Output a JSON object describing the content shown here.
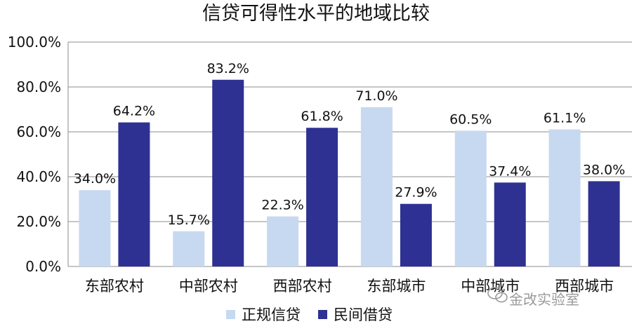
{
  "chart_data": {
    "type": "bar",
    "title": "信贷可得性水平的地域比较",
    "categories": [
      "东部农村",
      "中部农村",
      "西部农村",
      "东部城市",
      "中部城市",
      "西部城市"
    ],
    "series": [
      {
        "name": "正规信贷",
        "values": [
          34.0,
          15.7,
          22.3,
          71.0,
          60.5,
          61.1
        ],
        "labels": [
          "34.0%",
          "15.7%",
          "22.3%",
          "71.0%",
          "60.5%",
          "61.1%"
        ],
        "color": "#c6d9f0"
      },
      {
        "name": "民间借贷",
        "values": [
          64.2,
          83.2,
          61.8,
          27.9,
          37.4,
          38.0
        ],
        "labels": [
          "64.2%",
          "83.2%",
          "61.8%",
          "27.9%",
          "37.4%",
          "38.0%"
        ],
        "color": "#2e3192"
      }
    ],
    "ylim": [
      0,
      100
    ],
    "yticks": [
      0,
      20,
      40,
      60,
      80,
      100
    ],
    "ytick_labels": [
      "0.0%",
      "20.0%",
      "40.0%",
      "60.0%",
      "80.0%",
      "100.0%"
    ],
    "xlabel": "",
    "ylabel": "",
    "grid": true,
    "legend_position": "bottom-center"
  },
  "watermark": {
    "text": "金改实验室"
  }
}
